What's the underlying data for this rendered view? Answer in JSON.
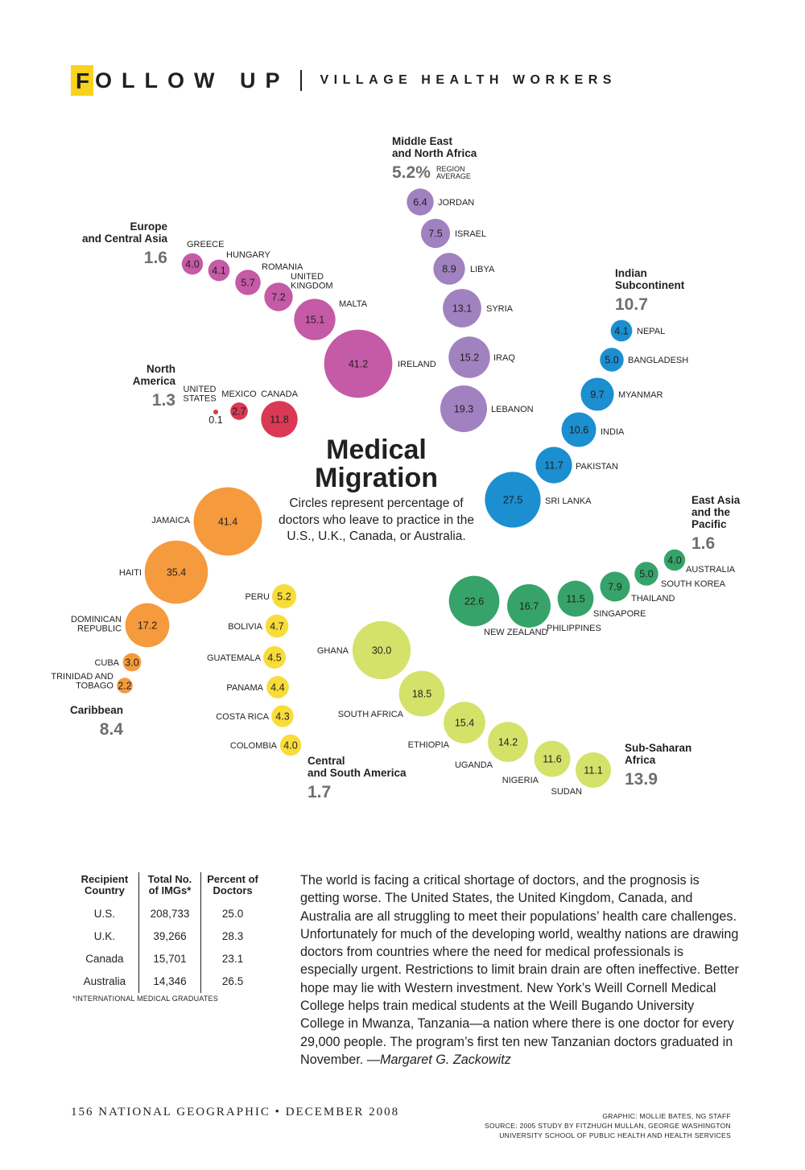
{
  "header": {
    "section_initial": "F",
    "section_rest": "OLLOW UP",
    "subtitle": "VILLAGE HEALTH WORKERS"
  },
  "chart_data": {
    "type": "bubble",
    "title": "Medical Migration",
    "subtitle": "Circles represent percentage of doctors who leave to practice in the U.S., U.K., Canada, or Australia.",
    "region_note": "REGION AVERAGE",
    "regions": [
      {
        "name": "Middle East and North Africa",
        "average": "5.2",
        "color": "#a082c0",
        "countries": [
          [
            "JORDAN",
            6.4
          ],
          [
            "ISRAEL",
            7.5
          ],
          [
            "LIBYA",
            8.9
          ],
          [
            "SYRIA",
            13.1
          ],
          [
            "IRAQ",
            15.2
          ],
          [
            "LEBANON",
            19.3
          ]
        ]
      },
      {
        "name": "Europe and Central Asia",
        "average": "1.6",
        "color": "#c55aa6",
        "countries": [
          [
            "GREECE",
            4.0
          ],
          [
            "HUNGARY",
            4.1
          ],
          [
            "ROMANIA",
            5.7
          ],
          [
            "UNITED KINGDOM",
            7.2
          ],
          [
            "MALTA",
            15.1
          ],
          [
            "IRELAND",
            41.2
          ]
        ]
      },
      {
        "name": "North America",
        "average": "1.3",
        "color": "#d93954",
        "countries": [
          [
            "UNITED STATES",
            0.1
          ],
          [
            "MEXICO",
            2.7
          ],
          [
            "CANADA",
            11.8
          ]
        ]
      },
      {
        "name": "Indian Subcontinent",
        "average": "10.7",
        "color": "#1b8fd0",
        "countries": [
          [
            "NEPAL",
            4.1
          ],
          [
            "BANGLADESH",
            5.0
          ],
          [
            "MYANMAR",
            9.7
          ],
          [
            "INDIA",
            10.6
          ],
          [
            "PAKISTAN",
            11.7
          ],
          [
            "SRI LANKA",
            27.5
          ]
        ]
      },
      {
        "name": "East Asia and the Pacific",
        "average": "1.6",
        "color": "#36a46a",
        "countries": [
          [
            "AUSTRALIA",
            4.0
          ],
          [
            "SOUTH KOREA",
            5.0
          ],
          [
            "THAILAND",
            7.9
          ],
          [
            "SINGAPORE",
            11.5
          ],
          [
            "PHILIPPINES",
            16.7
          ],
          [
            "NEW ZEALAND",
            22.6
          ]
        ]
      },
      {
        "name": "Caribbean",
        "average": "8.4",
        "color": "#f59a3d",
        "countries": [
          [
            "JAMAICA",
            41.4
          ],
          [
            "HAITI",
            35.4
          ],
          [
            "DOMINICAN REPUBLIC",
            17.2
          ],
          [
            "CUBA",
            3.0
          ],
          [
            "TRINIDAD AND TOBAGO",
            2.2
          ]
        ]
      },
      {
        "name": "Central and South America",
        "average": "1.7",
        "color": "#f8dc3a",
        "countries": [
          [
            "PERU",
            5.2
          ],
          [
            "BOLIVIA",
            4.7
          ],
          [
            "GUATEMALA",
            4.5
          ],
          [
            "PANAMA",
            4.4
          ],
          [
            "COSTA RICA",
            4.3
          ],
          [
            "COLOMBIA",
            4.0
          ]
        ]
      },
      {
        "name": "Sub-Saharan Africa",
        "average": "13.9",
        "color": "#d4e26a",
        "countries": [
          [
            "GHANA",
            30.0
          ],
          [
            "SOUTH AFRICA",
            18.5
          ],
          [
            "ETHIOPIA",
            15.4
          ],
          [
            "UGANDA",
            14.2
          ],
          [
            "NIGERIA",
            11.6
          ],
          [
            "SUDAN",
            11.1
          ]
        ]
      }
    ]
  },
  "table": {
    "headers": [
      "Recipient Country",
      "Total No. of IMGs*",
      "Percent of Doctors"
    ],
    "rows": [
      [
        "U.S.",
        "208,733",
        "25.0"
      ],
      [
        "U.K.",
        "39,266",
        "28.3"
      ],
      [
        "Canada",
        "15,701",
        "23.1"
      ],
      [
        "Australia",
        "14,346",
        "26.5"
      ]
    ],
    "footnote": "*INTERNATIONAL MEDICAL GRADUATES"
  },
  "article": {
    "text": "The world is facing a critical shortage of doctors, and the prognosis is getting worse. The United States, the United Kingdom, Canada, and Australia are all struggling to meet their populations’ health care challenges. Unfortunately for much of the developing world, wealthy nations are drawing doctors from countries where the need for medical professionals is especially urgent. Restrictions to limit brain drain are often ineffective. Better hope may lie with Western investment. New York’s Weill Cornell Medical College helps train medical students at the Weill Bugando University College in Mwanza, Tanzania—a nation where there is one doctor for every 29,000 people. The program’s first ten new Tanzanian doctors graduated in November.",
    "byline": "—Margaret G. Zackowitz"
  },
  "footer": {
    "page": "156 NATIONAL GEOGRAPHIC • DECEMBER 2008",
    "credit": "GRAPHIC: MOLLIE BATES, NG STAFF",
    "source_line1": "SOURCE: 2005 STUDY BY FITZHUGH MULLAN, GEORGE WASHINGTON",
    "source_line2": "UNIVERSITY SCHOOL OF PUBLIC HEALTH AND HEALTH SERVICES"
  }
}
